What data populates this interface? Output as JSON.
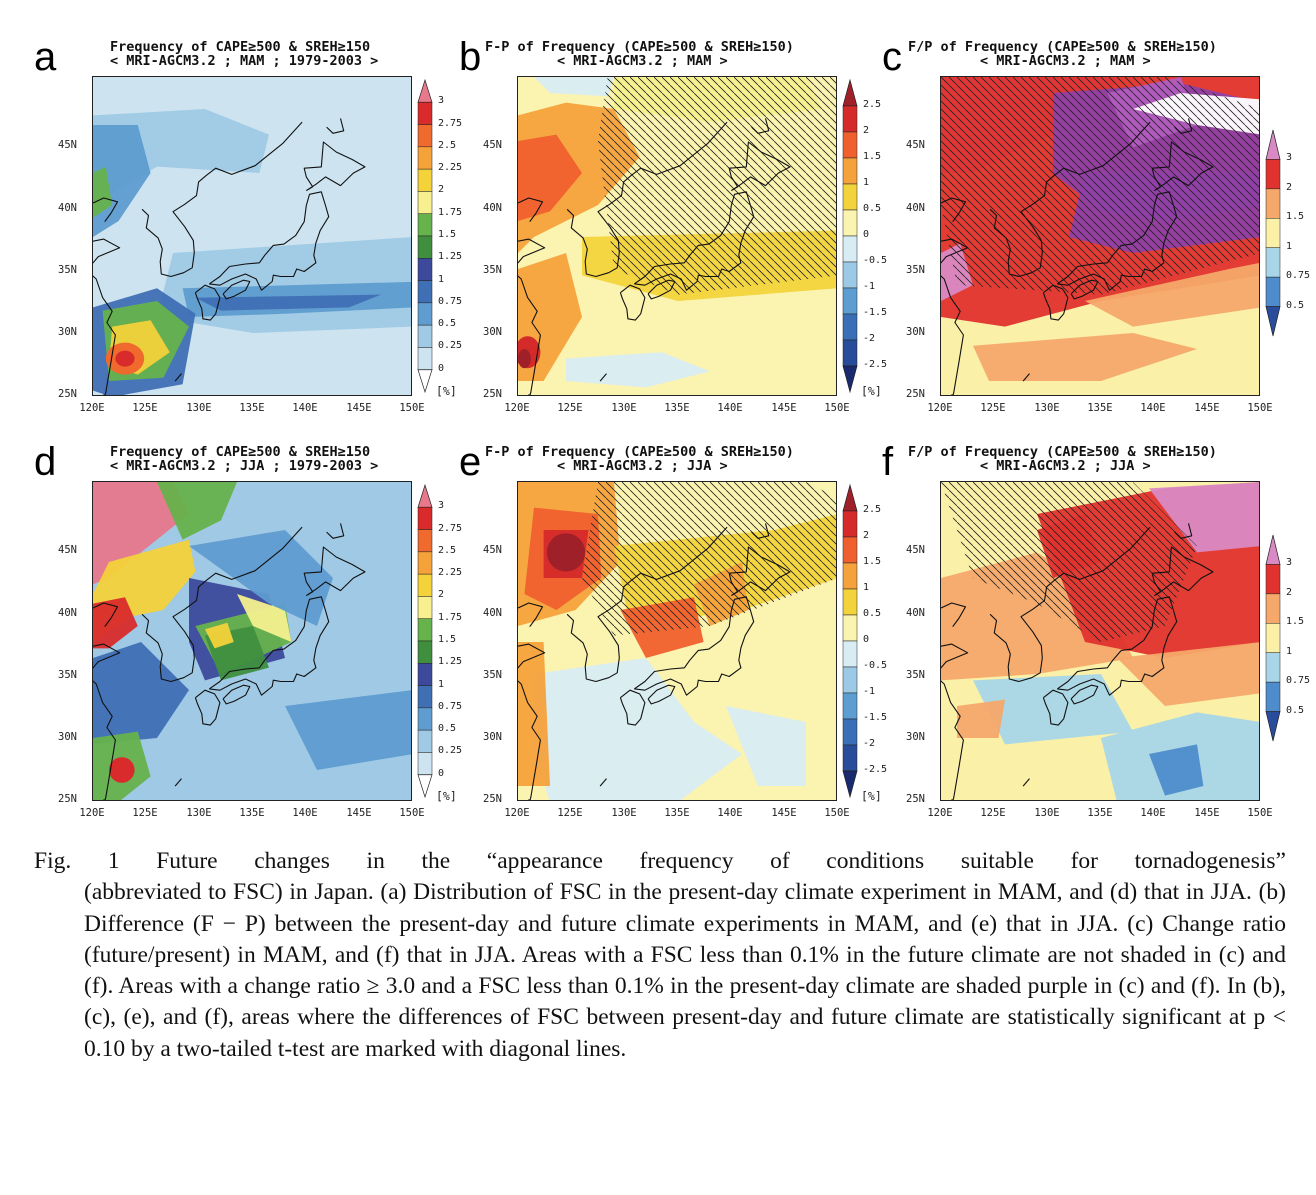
{
  "panels": [
    {
      "letter": "a",
      "title1": "Frequency of CAPE≥500 & SREH≥150",
      "title2": "< MRI-AGCM3.2 ; MAM ; 1979-2003 >",
      "scale": "freq",
      "season": "MAM"
    },
    {
      "letter": "b",
      "title1": "F-P of Frequency (CAPE≥500 & SREH≥150)",
      "title2": "< MRI-AGCM3.2 ; MAM >",
      "scale": "diff",
      "season": "MAM"
    },
    {
      "letter": "c",
      "title1": "F/P of Frequency (CAPE≥500 & SREH≥150)",
      "title2": "< MRI-AGCM3.2 ; MAM >",
      "scale": "ratio",
      "season": "MAM"
    },
    {
      "letter": "d",
      "title1": "Frequency of CAPE≥500 & SREH≥150",
      "title2": "< MRI-AGCM3.2 ; JJA ; 1979-2003 >",
      "scale": "freq",
      "season": "JJA"
    },
    {
      "letter": "e",
      "title1": "F-P of Frequency (CAPE≥500 & SREH≥150)",
      "title2": "< MRI-AGCM3.2 ; JJA >",
      "scale": "diff",
      "season": "JJA"
    },
    {
      "letter": "f",
      "title1": "F/P of Frequency (CAPE≥500 & SREH≥150)",
      "title2": "< MRI-AGCM3.2 ; JJA >",
      "scale": "ratio",
      "season": "JJA"
    }
  ],
  "axes": {
    "lat_labels": [
      "45N",
      "40N",
      "35N",
      "30N",
      "25N"
    ],
    "lon_labels": [
      "120E",
      "125E",
      "130E",
      "135E",
      "140E",
      "145E",
      "150E"
    ]
  },
  "colorbars": {
    "freq": {
      "labels": [
        "3",
        "2.75",
        "2.5",
        "2.25",
        "2",
        "1.75",
        "1.5",
        "1.25",
        "1",
        "0.75",
        "0.5",
        "0.25",
        "0"
      ],
      "unit": "[%]",
      "colors": [
        "#e8788c",
        "#d92b2b",
        "#f06a2e",
        "#f6a23a",
        "#f3d23a",
        "#f6f08e",
        "#66b24c",
        "#3f8f3f",
        "#3d4a9c",
        "#3f6fb4",
        "#5f9cd0",
        "#9fc9e4",
        "#cde4f0",
        "#ffffff"
      ]
    },
    "diff": {
      "labels": [
        "2.5",
        "2",
        "1.5",
        "1",
        "0.5",
        "0",
        "-0.5",
        "-1",
        "-1.5",
        "-2",
        "-2.5"
      ],
      "unit": "[%]",
      "colors": [
        "#a0202a",
        "#d42a2a",
        "#f0602e",
        "#f5a23c",
        "#f3d33c",
        "#fbf3b0",
        "#d8ecf4",
        "#9ccae6",
        "#5d9ed2",
        "#3a6eb6",
        "#284c9a",
        "#1a2a6e"
      ]
    },
    "ratio": {
      "labels": [
        "3",
        "2",
        "1.5",
        "1",
        "0.75",
        "0.5"
      ],
      "unit": "",
      "colors": [
        "#d98ac4",
        "#e0322e",
        "#f5a86a",
        "#faf0a8",
        "#a8d6e8",
        "#4e8ccc",
        "#2a4c9c"
      ]
    }
  },
  "caption": {
    "first": "Fig. 1   Future changes in the “appearance frequency of conditions suitable for tornadogenesis”",
    "rest": "(abbreviated to FSC) in Japan. (a) Distribution of FSC in the present-day climate experiment in MAM, and (d) that in JJA. (b) Difference (F − P) between the present-day and future climate experiments in MAM, and (e) that in JJA. (c) Change ratio (future/present) in MAM, and (f) that in JJA. Areas with a FSC less than 0.1% in the future climate are not shaded in (c) and (f). Areas with a change ratio ≥ 3.0 and a FSC less than 0.1% in the present-day climate are shaded purple in (c) and (f). In (b), (c), (e), and (f), areas where the differences of FSC between present-day and future climate are statistically significant at p < 0.10 by a two-tailed t-test are marked with diagonal lines."
  }
}
